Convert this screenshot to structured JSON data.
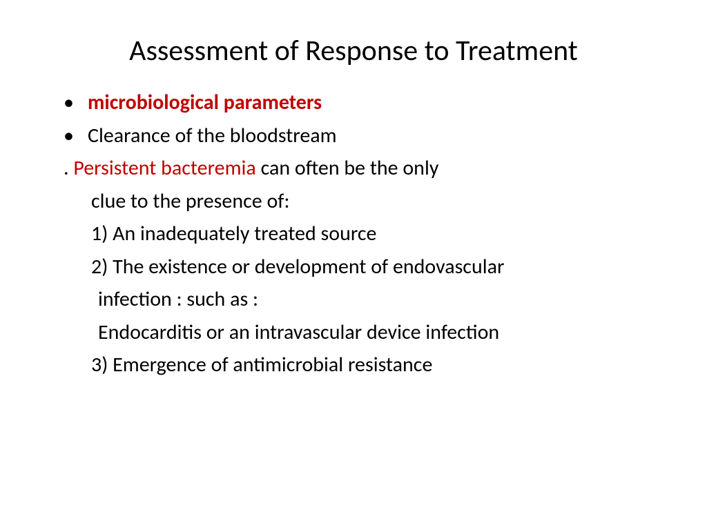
{
  "slide": {
    "title": "Assessment of Response to Treatment",
    "bullet1": "microbiological parameters",
    "bullet2": "Clearance of the bloodstream",
    "line3_prefix": ". ",
    "line3_red": "Persistent bacteremia ",
    "line3_rest": "can often be the only",
    "line4": "clue to the presence of:",
    "line5": "1) An inadequately treated source",
    "line6": "2) The existence or development of endovascular",
    "line7": "infection : such as :",
    "line8": "Endocarditis or an intravascular device infection",
    "line9": "3) Emergence of antimicrobial resistance"
  },
  "colors": {
    "red": "#c00000",
    "black": "#000000",
    "background": "#ffffff"
  },
  "typography": {
    "title_fontsize": 42,
    "body_fontsize": 30,
    "font_family": "Calibri"
  }
}
